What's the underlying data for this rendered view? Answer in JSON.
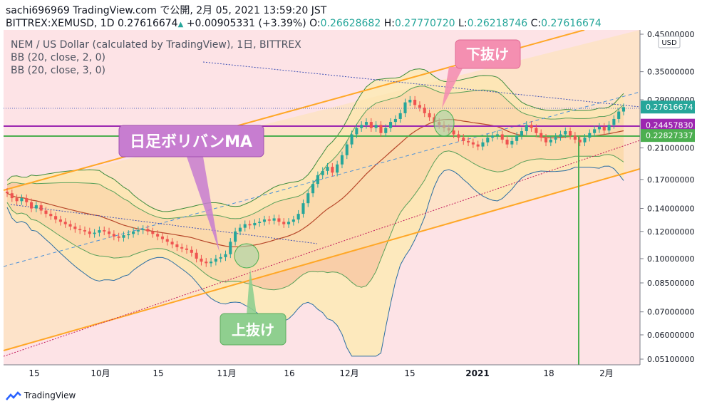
{
  "header": {
    "publish_line": "sachi696969 TradingView.com で公開, 2月 05, 2021 13:59:20 JST",
    "symbol": "BITTREX:XEMUSD, 1D",
    "last": "0.27616674",
    "change": "+0.00905331 (+3.39%)",
    "o_label": "O:",
    "o_value": "0.26628682",
    "h_label": "H:",
    "h_value": "0.27770720",
    "l_label": "L:",
    "l_value": "0.26218746",
    "c_label": "C:",
    "c_value": "0.27616674"
  },
  "footer": {
    "brand": "TradingView"
  },
  "colors": {
    "up": "#26a69a",
    "down": "#ef5350",
    "bb2_fill": "#f8c9a4",
    "bb3_fill": "#fde9b8",
    "channel": "#ffa726",
    "hline_purple": "#9c27b0",
    "hline_green": "#4caf50",
    "bg": "#fde3e6",
    "basis": "#b7472a"
  },
  "chart_data": {
    "type": "candlestick",
    "title": "NEM / US Dollar (calculated by TradingView), 1日, BITTREX",
    "indicators": [
      "BB (20, close, 2, 0)",
      "BB (20, close, 3, 0)"
    ],
    "y_scale": "log",
    "currency": "USD",
    "y_ticks": [
      "0.45000000",
      "0.35000000",
      "0.29000000",
      "0.21000000",
      "0.17000000",
      "0.14000000",
      "0.12000000",
      "0.10000000",
      "0.08500000",
      "0.07000000",
      "0.06000000",
      "0.05100000"
    ],
    "x_ticks": [
      "15",
      "10月",
      "15",
      "11月",
      "16",
      "12月",
      "15",
      "2021",
      "18",
      "2月"
    ],
    "price_labels": [
      {
        "value": "0.27616674",
        "color": "#26a69a"
      },
      {
        "value": "0.24457830",
        "color": "#9c27b0"
      },
      {
        "value": "0.22827337",
        "color": "#4caf50"
      }
    ],
    "horizontal_lines": [
      0.2445783,
      0.22827337
    ],
    "candles_close_approx": [
      0.155,
      0.15,
      0.147,
      0.15,
      0.146,
      0.14,
      0.143,
      0.138,
      0.135,
      0.133,
      0.13,
      0.128,
      0.126,
      0.124,
      0.122,
      0.121,
      0.12,
      0.118,
      0.119,
      0.121,
      0.12,
      0.118,
      0.116,
      0.115,
      0.117,
      0.118,
      0.12,
      0.121,
      0.122,
      0.12,
      0.118,
      0.116,
      0.114,
      0.112,
      0.11,
      0.108,
      0.107,
      0.106,
      0.104,
      0.1,
      0.098,
      0.097,
      0.098,
      0.1,
      0.101,
      0.103,
      0.112,
      0.12,
      0.123,
      0.126,
      0.125,
      0.127,
      0.128,
      0.13,
      0.129,
      0.131,
      0.128,
      0.126,
      0.128,
      0.13,
      0.135,
      0.145,
      0.155,
      0.165,
      0.175,
      0.18,
      0.185,
      0.178,
      0.188,
      0.2,
      0.215,
      0.23,
      0.24,
      0.245,
      0.25,
      0.24,
      0.245,
      0.232,
      0.24,
      0.25,
      0.255,
      0.265,
      0.285,
      0.29,
      0.28,
      0.275,
      0.265,
      0.258,
      0.25,
      0.245,
      0.24,
      0.236,
      0.23,
      0.225,
      0.22,
      0.218,
      0.215,
      0.212,
      0.218,
      0.225,
      0.228,
      0.23,
      0.222,
      0.215,
      0.22,
      0.228,
      0.235,
      0.245,
      0.24,
      0.232,
      0.225,
      0.218,
      0.222,
      0.226,
      0.23,
      0.235,
      0.228,
      0.222,
      0.218,
      0.225,
      0.232,
      0.238,
      0.242,
      0.236,
      0.245,
      0.255,
      0.268,
      0.276
    ],
    "annotations": [
      {
        "text": "日足ボリバンMA",
        "color": "#c77dd0"
      },
      {
        "text": "下抜け",
        "color": "#f48fb1"
      },
      {
        "text": "上抜け",
        "color": "#8fcf8f"
      }
    ]
  }
}
